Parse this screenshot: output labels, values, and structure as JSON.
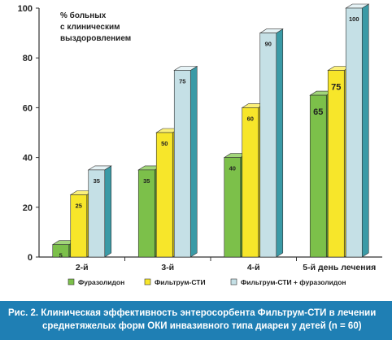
{
  "caption": {
    "line1": "Рис. 2. Клиническая эффективность энтеросорбента Фильтрум-СТИ в лечении",
    "line2": "среднетяжелых форм ОКИ инвазивного типа диареи у детей (n = 60)"
  },
  "chart_data": {
    "type": "bar",
    "categories": [
      "2-й",
      "3-й",
      "4-й",
      "5-й день лечения"
    ],
    "ylabel": [
      "% больных",
      "с клиническим",
      "выздоровлением"
    ],
    "ylim": [
      0,
      100
    ],
    "yticks": [
      0,
      20,
      40,
      60,
      80,
      100
    ],
    "series": [
      {
        "name": "Фуразолидон",
        "values": [
          5,
          35,
          40,
          65
        ],
        "color": "#7cc04a",
        "top": "#a2d67a",
        "side": "#4f8a2c"
      },
      {
        "name": "Фильтрум-СТИ",
        "values": [
          25,
          50,
          60,
          75
        ],
        "color": "#f7e62a",
        "top": "#fbf07a",
        "side": "#c4b10c"
      },
      {
        "name": "Фильтрум-СТИ + фуразолидон",
        "values": [
          35,
          75,
          90,
          100
        ],
        "color": "#c5e0e6",
        "top": "#e6f3f6",
        "side": "#3a9aa6"
      }
    ],
    "grid": false,
    "legend_position": "bottom"
  }
}
